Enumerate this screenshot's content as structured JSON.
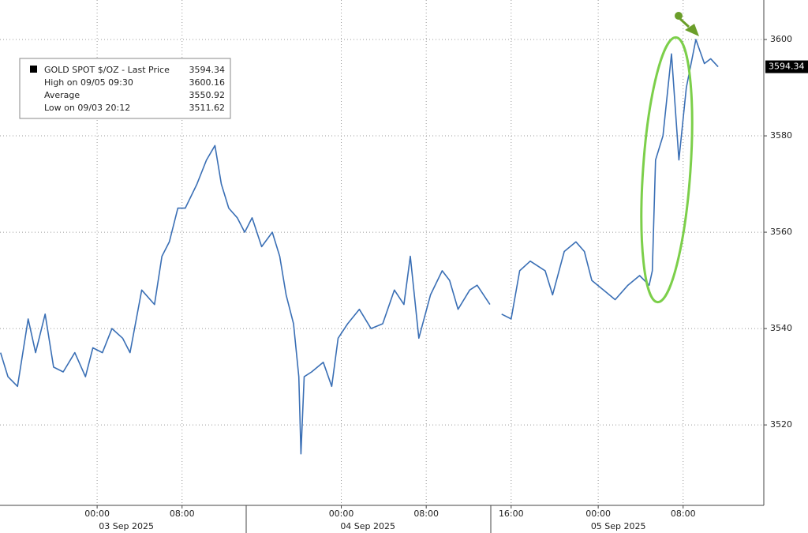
{
  "chart_data": {
    "type": "line",
    "series": [
      {
        "name": "GOLD SPOT $/OZ - Last Price",
        "color": "#3a6fb5",
        "last_value": 3594.34,
        "x": [
          -9.1,
          -8.4,
          -7.5,
          -6.5,
          -5.8,
          -4.9,
          -4.1,
          -3.2,
          -2.1,
          -1.1,
          -0.4,
          0.5,
          1.4,
          2.4,
          3.1,
          4.2,
          5.4,
          6.1,
          6.8,
          7.6,
          8.3,
          9.4,
          10.3,
          11.1,
          11.7,
          12.4,
          13.2,
          13.9,
          14.6,
          15.5,
          16.5,
          17.2,
          17.8,
          18.5,
          19.0,
          19.2,
          19.5,
          20.2,
          21.3,
          22.1,
          22.7,
          23.6,
          24.7,
          25.8,
          26.9,
          28.0,
          28.9,
          29.5,
          30.3,
          31.4,
          32.5,
          33.2,
          34.0,
          35.1,
          35.8,
          37.0,
          37.5,
          38.1,
          39.0,
          39.8,
          40.8,
          42.2,
          42.9,
          44.0,
          45.1,
          45.9,
          46.6,
          47.7,
          48.8,
          50.0,
          51.1,
          52.0,
          52.3,
          52.6,
          53.3,
          54.1,
          54.8,
          55.5,
          56.4,
          57.2,
          57.8,
          58.5
        ],
        "values": [
          3535,
          3530,
          3528,
          3542,
          3535,
          3543,
          3532,
          3531,
          3535,
          3530,
          3536,
          3535,
          3540,
          3538,
          3535,
          3548,
          3545,
          3555,
          3558,
          3565,
          3565,
          3570,
          3575,
          3578,
          3570,
          3565,
          3563,
          3560,
          3563,
          3557,
          3560,
          3555,
          3547,
          3541,
          3530,
          3514,
          3530,
          3531,
          3533,
          3528,
          3538,
          3541,
          3544,
          3540,
          3541,
          3548,
          3545,
          3555,
          3538,
          3547,
          3552,
          3550,
          3544,
          3548,
          3549,
          3545,
          null,
          3543,
          3542,
          3552,
          3554,
          3552,
          3547,
          3556,
          3558,
          3556,
          3550,
          3548,
          3546,
          3549,
          3551,
          3549,
          3552,
          3575,
          3580,
          3597,
          3575,
          3590,
          3600,
          3595,
          3596,
          3594.34
        ]
      }
    ],
    "legend": [
      {
        "label": "High on 09/05 09:30",
        "value": 3600.16
      },
      {
        "label": "Average",
        "value": 3550.92
      },
      {
        "label": "Low on 09/03 20:12",
        "value": 3511.62
      }
    ],
    "xlim": [
      -9.15,
      62.8
    ],
    "xticks": [
      {
        "value": 0,
        "label": "00:00"
      },
      {
        "value": 8,
        "label": "08:00"
      },
      {
        "value": 23,
        "label": "00:00"
      },
      {
        "value": 31,
        "label": "08:00"
      },
      {
        "value": 39,
        "label": "16:00"
      },
      {
        "value": 47.2,
        "label": "00:00"
      },
      {
        "value": 55.2,
        "label": "08:00"
      }
    ],
    "date_labels": [
      {
        "value": 2.75,
        "label": "03 Sep 2025"
      },
      {
        "value": 25.5,
        "label": "04 Sep 2025"
      },
      {
        "value": 49.1,
        "label": "05 Sep 2025"
      }
    ],
    "ylim": [
      3503.3,
      3608.2
    ],
    "yticks": [
      3520,
      3540,
      3560,
      3580,
      3600
    ],
    "grid": true
  }
}
